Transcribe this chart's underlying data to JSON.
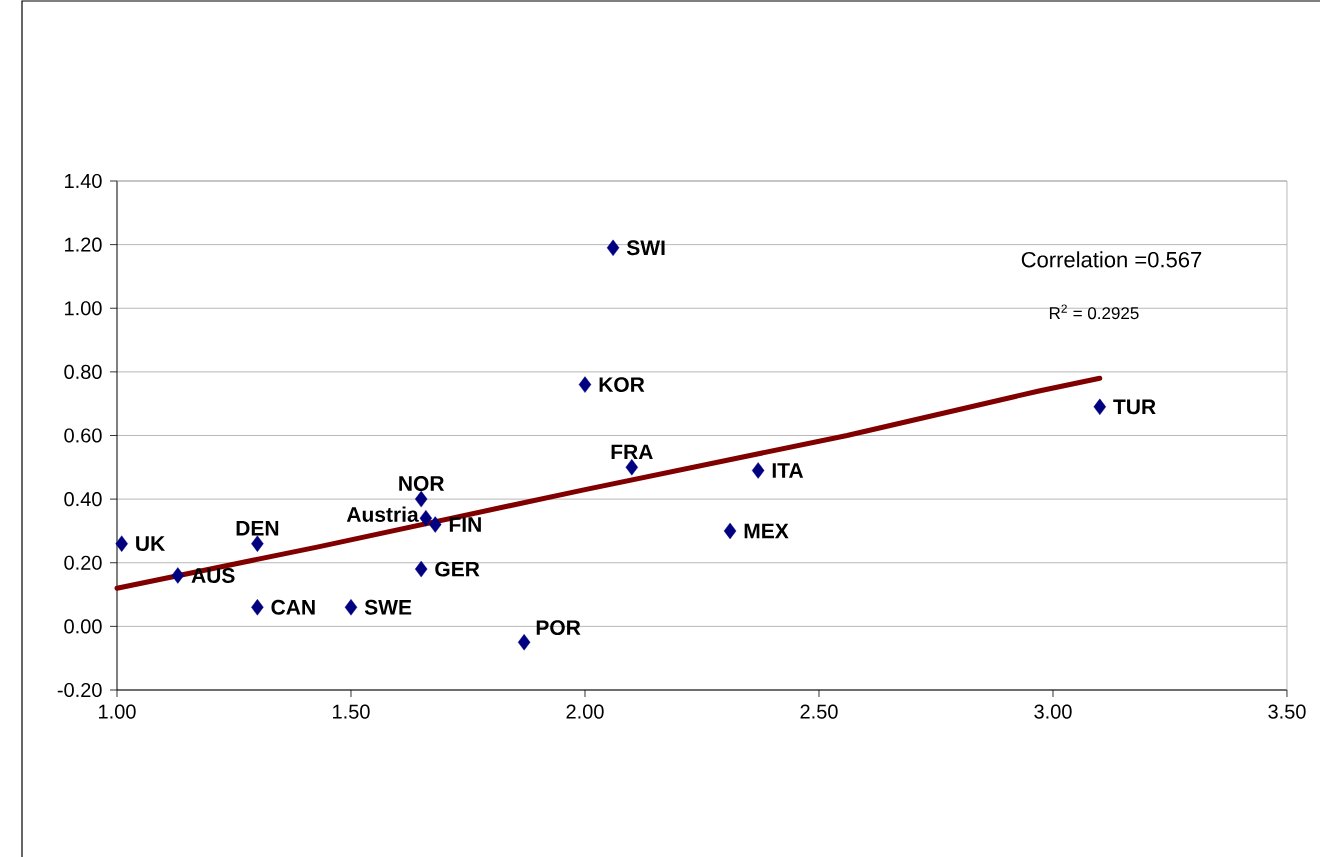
{
  "chart_data": {
    "type": "scatter",
    "xlim": [
      1.0,
      3.5
    ],
    "xticks": [
      {
        "value": 1.0,
        "label": "1.00"
      },
      {
        "value": 1.5,
        "label": "1.50"
      },
      {
        "value": 2.0,
        "label": "2.00"
      },
      {
        "value": 2.5,
        "label": "2.50"
      },
      {
        "value": 3.0,
        "label": "3.00"
      },
      {
        "value": 3.5,
        "label": "3.50"
      }
    ],
    "ylim": [
      -0.2,
      1.4
    ],
    "yticks": [
      {
        "value": -0.2,
        "label": "-0.20"
      },
      {
        "value": 0.0,
        "label": "0.00"
      },
      {
        "value": 0.2,
        "label": "0.20"
      },
      {
        "value": 0.4,
        "label": "0.40"
      },
      {
        "value": 0.6,
        "label": "0.60"
      },
      {
        "value": 0.8,
        "label": "0.80"
      },
      {
        "value": 1.0,
        "label": "1.00"
      },
      {
        "value": 1.2,
        "label": "1.20"
      },
      {
        "value": 1.4,
        "label": "1.40"
      }
    ],
    "grid": "y",
    "marker": "diamond",
    "series": [
      {
        "color": "#000080",
        "x": [
          1.01,
          1.13,
          1.3,
          1.3,
          1.5,
          1.65,
          1.66,
          1.68,
          1.65,
          1.87,
          2.0,
          2.06,
          2.1,
          2.37,
          2.31,
          3.1
        ],
        "values": [
          0.26,
          0.16,
          0.26,
          0.06,
          0.06,
          0.4,
          0.34,
          0.32,
          0.18,
          -0.05,
          0.76,
          1.19,
          0.5,
          0.49,
          0.3,
          0.69
        ]
      },
      {
        "type": "line",
        "color": "#800000",
        "marker": "none",
        "x": [
          1.0,
          1.43,
          2.0,
          2.56,
          2.97,
          3.1
        ],
        "values": [
          0.12,
          0.25,
          0.43,
          0.6,
          0.74,
          0.78
        ]
      }
    ],
    "annotations": [
      {
        "text": "UK",
        "x": 1.01,
        "y": 0.26
      },
      {
        "text": "AUS",
        "x": 1.13,
        "y": 0.16
      },
      {
        "text": "DEN",
        "x": 1.3,
        "y": 0.26
      },
      {
        "text": "CAN",
        "x": 1.3,
        "y": 0.06
      },
      {
        "text": "SWE",
        "x": 1.5,
        "y": 0.06
      },
      {
        "text": "NOR",
        "x": 1.65,
        "y": 0.4
      },
      {
        "text": "Austria",
        "x": 1.66,
        "y": 0.34
      },
      {
        "text": "FIN",
        "x": 1.68,
        "y": 0.32
      },
      {
        "text": "GER",
        "x": 1.65,
        "y": 0.18
      },
      {
        "text": "POR",
        "x": 1.87,
        "y": -0.05
      },
      {
        "text": "KOR",
        "x": 2.0,
        "y": 0.76
      },
      {
        "text": "SWI",
        "x": 2.06,
        "y": 1.19
      },
      {
        "text": "FRA",
        "x": 2.1,
        "y": 0.5
      },
      {
        "text": "ITA",
        "x": 2.37,
        "y": 0.49
      },
      {
        "text": "MEX",
        "x": 2.31,
        "y": 0.3
      },
      {
        "text": "TUR",
        "x": 3.1,
        "y": 0.69
      },
      "Correlation =0.567",
      "R$^{2}$ = 0.2925"
    ]
  }
}
